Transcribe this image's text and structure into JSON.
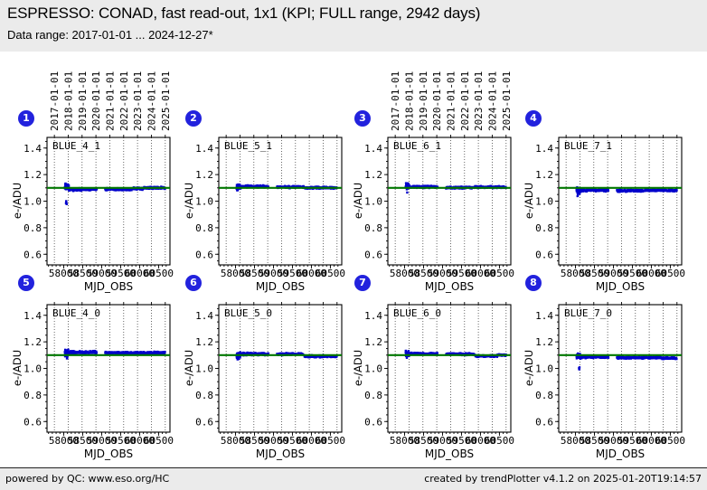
{
  "header": {
    "title": "ESPRESSO: CONAD, fast read-out, 1x1 (KPI; FULL range, 2942 days)",
    "subtitle": "Data range: 2017-01-01 ... 2024-12-27*"
  },
  "footer": {
    "left": "powered by QC: www.eso.org/HC",
    "right": "created by trendPlotter v4.1.2 on 2025-01-20T19:14:57"
  },
  "colors": {
    "point": "#0000cc",
    "reference_line": "#007700",
    "badge": "#2222dd",
    "header_bg": "#ebebeb",
    "footer_bg": "#ebebeb",
    "grid": "#444444",
    "frame": "#000000"
  },
  "chart_data": {
    "type": "scatter",
    "xlabel": "MJD_OBS",
    "ylabel": "e-/ADU",
    "xlim": [
      57560,
      60800
    ],
    "ylim": [
      0.52,
      1.48
    ],
    "xticks": [
      58000,
      58500,
      59000,
      59500,
      60000,
      60500
    ],
    "yticks": [
      0.6,
      0.8,
      1.0,
      1.2,
      1.4
    ],
    "x_minor_tick_step": 100,
    "y_minor_tick_step": 0.05,
    "grid": "vertical-dotted-yearlines",
    "legend_position": "none",
    "reference_line": 1.1,
    "year_gridlines": [
      {
        "mjd": 57754,
        "label": "2017-01-01"
      },
      {
        "mjd": 58119,
        "label": "2018-01-01"
      },
      {
        "mjd": 58484,
        "label": "2019-01-01"
      },
      {
        "mjd": 58849,
        "label": "2020-01-01"
      },
      {
        "mjd": 59215,
        "label": "2021-01-01"
      },
      {
        "mjd": 59580,
        "label": "2022-01-01"
      },
      {
        "mjd": 59945,
        "label": "2023-01-01"
      },
      {
        "mjd": 60310,
        "label": "2024-01-01"
      },
      {
        "mjd": 60676,
        "label": "2025-01-01"
      }
    ],
    "plots": [
      {
        "badge": 1,
        "label": "BLUE_4_1",
        "top_date_labels": true,
        "band_segments": [
          {
            "x0": 58030,
            "x1": 58135,
            "y": 1.105,
            "spread": 0.018
          },
          {
            "x0": 58135,
            "x1": 58540,
            "y": 1.087,
            "spread": 0.007
          },
          {
            "x0": 58560,
            "x1": 58870,
            "y": 1.089,
            "spread": 0.006
          },
          {
            "x0": 59095,
            "x1": 59800,
            "y": 1.09,
            "spread": 0.006
          },
          {
            "x0": 59830,
            "x1": 60120,
            "y": 1.094,
            "spread": 0.006
          },
          {
            "x0": 60120,
            "x1": 60671,
            "y": 1.1,
            "spread": 0.006
          }
        ],
        "outliers": [
          {
            "x": 58060,
            "y": 0.985
          },
          {
            "x": 58070,
            "y": 0.99
          },
          {
            "x": 58078,
            "y": 0.978
          },
          {
            "x": 58066,
            "y": 1.0
          }
        ]
      },
      {
        "badge": 2,
        "label": "BLUE_5_1",
        "top_date_labels": false,
        "band_segments": [
          {
            "x0": 58030,
            "x1": 58135,
            "y": 1.108,
            "spread": 0.016
          },
          {
            "x0": 58135,
            "x1": 58870,
            "y": 1.11,
            "spread": 0.006
          },
          {
            "x0": 59095,
            "x1": 59800,
            "y": 1.106,
            "spread": 0.0055
          },
          {
            "x0": 59830,
            "x1": 60671,
            "y": 1.101,
            "spread": 0.005
          }
        ],
        "outliers": [
          {
            "x": 58055,
            "y": 1.082
          },
          {
            "x": 58065,
            "y": 1.088
          }
        ]
      },
      {
        "badge": 3,
        "label": "BLUE_6_1",
        "top_date_labels": true,
        "band_segments": [
          {
            "x0": 58030,
            "x1": 58135,
            "y": 1.112,
            "spread": 0.016
          },
          {
            "x0": 58135,
            "x1": 58870,
            "y": 1.107,
            "spread": 0.006
          },
          {
            "x0": 59095,
            "x1": 59800,
            "y": 1.102,
            "spread": 0.0055
          },
          {
            "x0": 59830,
            "x1": 60671,
            "y": 1.106,
            "spread": 0.0055
          }
        ],
        "outliers": [
          {
            "x": 58060,
            "y": 1.13
          },
          {
            "x": 58070,
            "y": 1.065
          }
        ]
      },
      {
        "badge": 4,
        "label": "BLUE_7_1",
        "top_date_labels": false,
        "band_segments": [
          {
            "x0": 58030,
            "x1": 58135,
            "y": 1.078,
            "spread": 0.018
          },
          {
            "x0": 58135,
            "x1": 58870,
            "y": 1.082,
            "spread": 0.006
          },
          {
            "x0": 59095,
            "x1": 59800,
            "y": 1.078,
            "spread": 0.0055
          },
          {
            "x0": 59830,
            "x1": 60671,
            "y": 1.082,
            "spread": 0.005
          }
        ],
        "outliers": [
          {
            "x": 58055,
            "y": 1.038
          },
          {
            "x": 58065,
            "y": 1.047
          }
        ]
      },
      {
        "badge": 5,
        "label": "BLUE_4_0",
        "top_date_labels": false,
        "band_segments": [
          {
            "x0": 58030,
            "x1": 58135,
            "y": 1.115,
            "spread": 0.02
          },
          {
            "x0": 58135,
            "x1": 58870,
            "y": 1.121,
            "spread": 0.0075
          },
          {
            "x0": 59095,
            "x1": 59800,
            "y": 1.117,
            "spread": 0.006
          },
          {
            "x0": 59830,
            "x1": 60671,
            "y": 1.118,
            "spread": 0.006
          }
        ],
        "outliers": [
          {
            "x": 58085,
            "y": 1.075
          },
          {
            "x": 58095,
            "y": 1.082
          }
        ]
      },
      {
        "badge": 6,
        "label": "BLUE_5_0",
        "top_date_labels": false,
        "band_segments": [
          {
            "x0": 58030,
            "x1": 58135,
            "y": 1.1,
            "spread": 0.02
          },
          {
            "x0": 58135,
            "x1": 58870,
            "y": 1.108,
            "spread": 0.007
          },
          {
            "x0": 59095,
            "x1": 59790,
            "y": 1.108,
            "spread": 0.006
          },
          {
            "x0": 59820,
            "x1": 60671,
            "y": 1.091,
            "spread": 0.0055
          }
        ],
        "outliers": [
          {
            "x": 58055,
            "y": 1.068
          },
          {
            "x": 58065,
            "y": 1.075
          }
        ]
      },
      {
        "badge": 7,
        "label": "BLUE_6_0",
        "top_date_labels": false,
        "band_segments": [
          {
            "x0": 58030,
            "x1": 58135,
            "y": 1.112,
            "spread": 0.015
          },
          {
            "x0": 58135,
            "x1": 58870,
            "y": 1.11,
            "spread": 0.006
          },
          {
            "x0": 59095,
            "x1": 59840,
            "y": 1.107,
            "spread": 0.0055
          },
          {
            "x0": 59870,
            "x1": 60440,
            "y": 1.093,
            "spread": 0.0055
          },
          {
            "x0": 60440,
            "x1": 60671,
            "y": 1.1,
            "spread": 0.005
          }
        ],
        "outliers": [
          {
            "x": 58060,
            "y": 1.08
          }
        ]
      },
      {
        "badge": 8,
        "label": "BLUE_7_0",
        "top_date_labels": false,
        "band_segments": [
          {
            "x0": 58030,
            "x1": 58135,
            "y": 1.09,
            "spread": 0.014
          },
          {
            "x0": 58135,
            "x1": 58870,
            "y": 1.086,
            "spread": 0.006
          },
          {
            "x0": 59095,
            "x1": 60280,
            "y": 1.081,
            "spread": 0.0055
          },
          {
            "x0": 60280,
            "x1": 60671,
            "y": 1.077,
            "spread": 0.005
          }
        ],
        "outliers": [
          {
            "x": 58095,
            "y": 1.002
          },
          {
            "x": 58102,
            "y": 0.998
          },
          {
            "x": 58108,
            "y": 1.008
          },
          {
            "x": 58100,
            "y": 0.993
          }
        ]
      }
    ]
  }
}
